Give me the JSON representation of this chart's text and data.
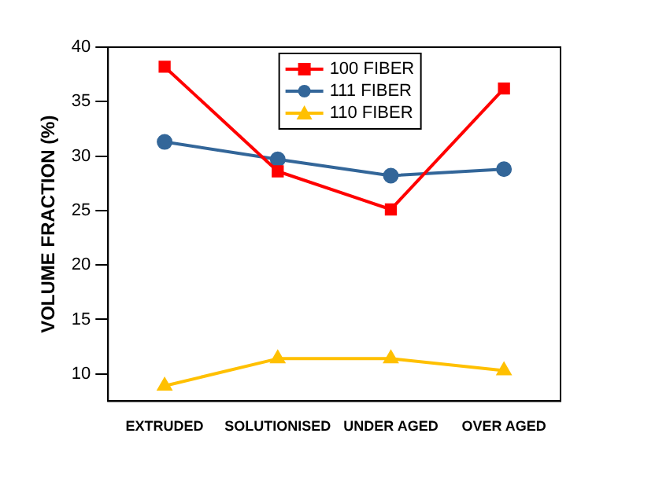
{
  "chart_data": {
    "type": "line",
    "ylabel": "VOLUME FRACTION (%)",
    "categories": [
      "EXTRUDED",
      "SOLUTIONISED",
      "UNDER AGED",
      "OVER AGED"
    ],
    "series": [
      {
        "name": "100 FIBER",
        "color": "#ff0000",
        "marker": "square",
        "values": [
          38.2,
          28.6,
          25.1,
          36.2
        ]
      },
      {
        "name": "111 FIBER",
        "color": "#336699",
        "marker": "circle",
        "values": [
          31.3,
          29.7,
          28.2,
          28.8
        ]
      },
      {
        "name": "110 FIBER",
        "color": "#ffc000",
        "marker": "triangle",
        "values": [
          8.9,
          11.4,
          11.4,
          10.3
        ]
      }
    ],
    "ylim": [
      7.5,
      40
    ],
    "yticks": [
      10,
      15,
      20,
      25,
      30,
      35,
      40
    ],
    "grid": false,
    "legend": "top"
  }
}
